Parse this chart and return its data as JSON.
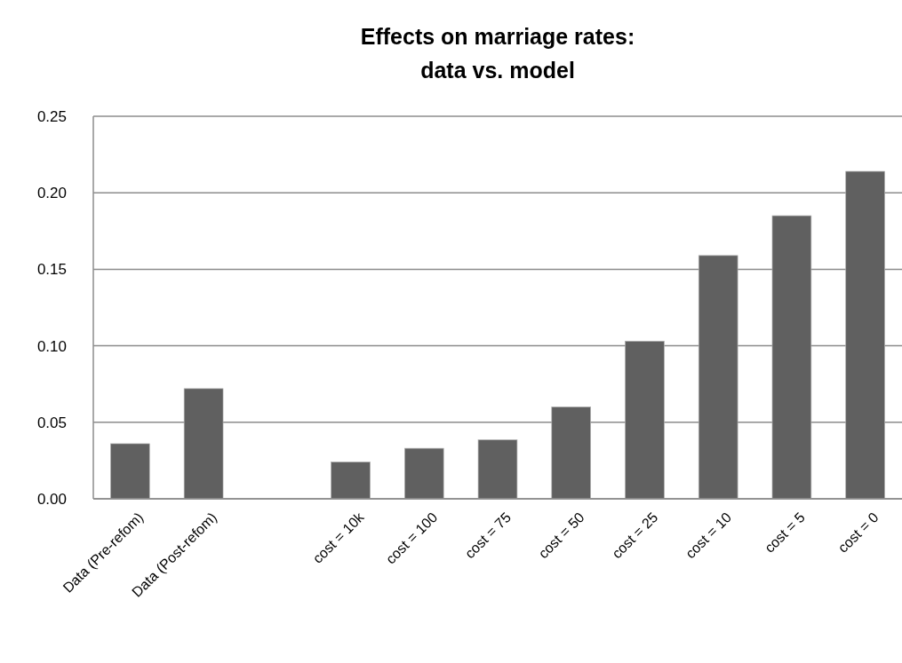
{
  "chart_data": {
    "type": "bar",
    "title": "Effects on marriage rates:\ndata vs. model",
    "categories": [
      "Data (Pre-refom)",
      "Data (Post-refom)",
      null,
      "cost = 10k",
      "cost = 100",
      "cost = 75",
      "cost = 50",
      "cost = 25",
      "cost = 10",
      "cost = 5",
      "cost = 0"
    ],
    "values": [
      0.036,
      0.072,
      null,
      0.024,
      0.033,
      0.0385,
      0.06,
      0.103,
      0.159,
      0.185,
      0.214
    ],
    "color": "#606060",
    "ylim": [
      0,
      0.25
    ],
    "yticks": [
      {
        "value": 0,
        "label": "0.00"
      },
      {
        "value": 0.05,
        "label": "0.05"
      },
      {
        "value": 0.1,
        "label": "0.10"
      },
      {
        "value": 0.15,
        "label": "0.15"
      },
      {
        "value": 0.2,
        "label": "0.20"
      },
      {
        "value": 0.25,
        "label": "0.25"
      }
    ],
    "grid": "y"
  }
}
